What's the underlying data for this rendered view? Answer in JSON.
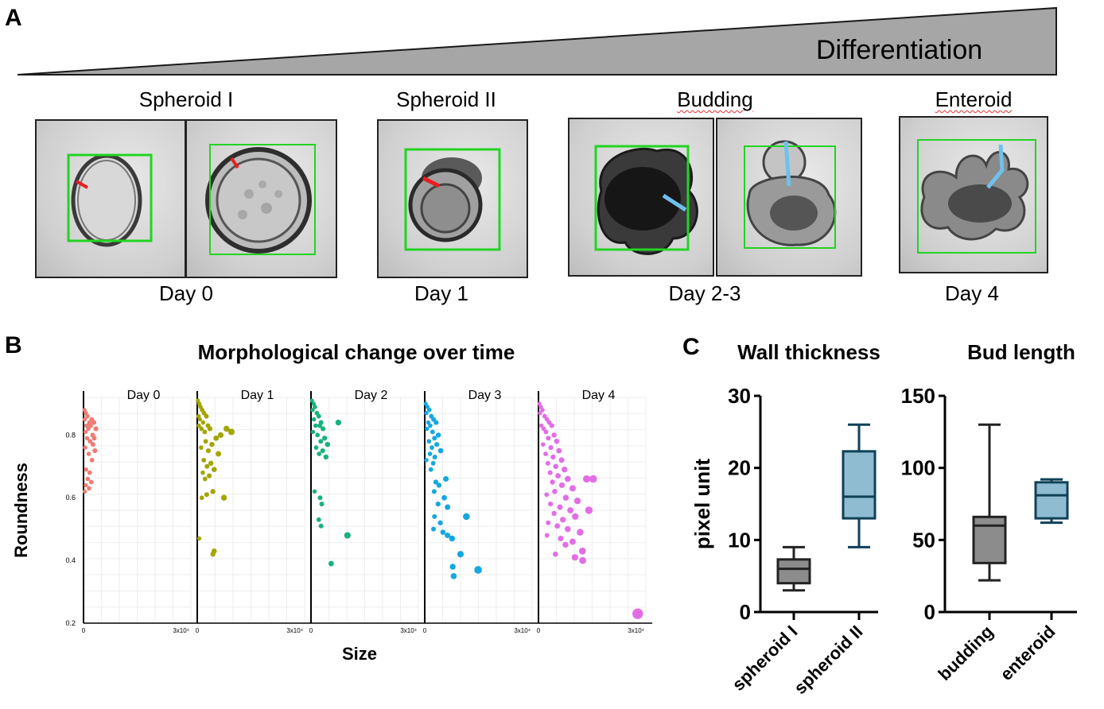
{
  "panel_a": {
    "letter": "A",
    "arrow_label": "Differentiation",
    "stages": [
      {
        "title": "Spheroid I",
        "day": "Day 0"
      },
      {
        "title": "Spheroid II",
        "day": "Day 1"
      },
      {
        "title": "Budding",
        "day": "Day 2-3"
      },
      {
        "title": "Enteroid",
        "day": "Day 4"
      }
    ],
    "colors": {
      "box": "#22d422",
      "wall_mark": "#e81e1e",
      "bud_mark": "#6ec1ea",
      "triangle": "#a6a6a6"
    }
  },
  "panel_b": {
    "letter": "B",
    "title": "Morphological change over time"
  },
  "panel_c": {
    "letter": "C"
  },
  "chart_data": [
    {
      "type": "scatter",
      "title": "Morphological change over time",
      "xlabel": "Size",
      "ylabel": "Roundness",
      "facets": [
        "Day 0",
        "Day 1",
        "Day 2",
        "Day 3",
        "Day 4"
      ],
      "xlim": [
        0,
        33000
      ],
      "x_ticks": [
        {
          "value": 0,
          "label": "0"
        },
        {
          "value": 30000,
          "label": "3x10⁴"
        }
      ],
      "ylim": [
        0.2,
        0.92
      ],
      "y_ticks": [
        0.2,
        0.4,
        0.6,
        0.8
      ],
      "colors": [
        "#f07b72",
        "#a3a500",
        "#19b27a",
        "#14a8e0",
        "#e26ee6"
      ],
      "series": [
        {
          "name": "Day 0",
          "points": [
            [
              300,
              0.88
            ],
            [
              700,
              0.87
            ],
            [
              1200,
              0.86
            ],
            [
              400,
              0.85
            ],
            [
              1800,
              0.84
            ],
            [
              2500,
              0.85
            ],
            [
              3200,
              0.84
            ],
            [
              900,
              0.83
            ],
            [
              1500,
              0.82
            ],
            [
              2200,
              0.83
            ],
            [
              3800,
              0.82
            ],
            [
              600,
              0.81
            ],
            [
              2800,
              0.8
            ],
            [
              1100,
              0.79
            ],
            [
              2000,
              0.78
            ],
            [
              3300,
              0.79
            ],
            [
              500,
              0.76
            ],
            [
              1600,
              0.74
            ],
            [
              2600,
              0.72
            ],
            [
              800,
              0.69
            ],
            [
              1900,
              0.68
            ],
            [
              1300,
              0.66
            ],
            [
              2400,
              0.65
            ],
            [
              700,
              0.64
            ],
            [
              1700,
              0.63
            ],
            [
              400,
              0.62
            ],
            [
              2900,
              0.77
            ],
            [
              3500,
              0.75
            ]
          ]
        },
        {
          "name": "Day 1",
          "points": [
            [
              200,
              0.91
            ],
            [
              600,
              0.9
            ],
            [
              1000,
              0.89
            ],
            [
              1500,
              0.88
            ],
            [
              2100,
              0.87
            ],
            [
              400,
              0.86
            ],
            [
              2800,
              0.86
            ],
            [
              800,
              0.85
            ],
            [
              1800,
              0.84
            ],
            [
              3300,
              0.83
            ],
            [
              500,
              0.83
            ],
            [
              1300,
              0.82
            ],
            [
              2300,
              0.81
            ],
            [
              3900,
              0.82
            ],
            [
              9000,
              0.82
            ],
            [
              10500,
              0.81
            ],
            [
              7200,
              0.8
            ],
            [
              5800,
              0.79
            ],
            [
              2600,
              0.78
            ],
            [
              4500,
              0.77
            ],
            [
              1200,
              0.76
            ],
            [
              3400,
              0.75
            ],
            [
              6500,
              0.74
            ],
            [
              2000,
              0.72
            ],
            [
              4200,
              0.71
            ],
            [
              3000,
              0.7
            ],
            [
              5200,
              0.69
            ],
            [
              1700,
              0.68
            ],
            [
              3700,
              0.67
            ],
            [
              2400,
              0.66
            ],
            [
              8200,
              0.6
            ],
            [
              4800,
              0.62
            ],
            [
              2900,
              0.61
            ],
            [
              1400,
              0.6
            ],
            [
              600,
              0.47
            ],
            [
              5200,
              0.43
            ],
            [
              4800,
              0.42
            ]
          ]
        },
        {
          "name": "Day 2",
          "points": [
            [
              300,
              0.91
            ],
            [
              800,
              0.9
            ],
            [
              1200,
              0.89
            ],
            [
              500,
              0.88
            ],
            [
              1800,
              0.87
            ],
            [
              2400,
              0.86
            ],
            [
              900,
              0.85
            ],
            [
              3100,
              0.84
            ],
            [
              8400,
              0.84
            ],
            [
              1400,
              0.83
            ],
            [
              2700,
              0.83
            ],
            [
              3700,
              0.82
            ],
            [
              600,
              0.81
            ],
            [
              2000,
              0.8
            ],
            [
              4200,
              0.79
            ],
            [
              3000,
              0.78
            ],
            [
              5100,
              0.77
            ],
            [
              1600,
              0.76
            ],
            [
              3600,
              0.75
            ],
            [
              2500,
              0.74
            ],
            [
              4600,
              0.73
            ],
            [
              1100,
              0.62
            ],
            [
              2800,
              0.6
            ],
            [
              3300,
              0.58
            ],
            [
              2400,
              0.53
            ],
            [
              3100,
              0.51
            ],
            [
              11200,
              0.48
            ],
            [
              6200,
              0.39
            ]
          ]
        },
        {
          "name": "Day 3",
          "points": [
            [
              300,
              0.9
            ],
            [
              800,
              0.89
            ],
            [
              1400,
              0.88
            ],
            [
              500,
              0.87
            ],
            [
              2000,
              0.86
            ],
            [
              2700,
              0.85
            ],
            [
              1100,
              0.84
            ],
            [
              3500,
              0.84
            ],
            [
              1700,
              0.83
            ],
            [
              700,
              0.82
            ],
            [
              2400,
              0.81
            ],
            [
              4200,
              0.8
            ],
            [
              3000,
              0.79
            ],
            [
              1300,
              0.78
            ],
            [
              3700,
              0.77
            ],
            [
              2200,
              0.76
            ],
            [
              4900,
              0.75
            ],
            [
              1600,
              0.74
            ],
            [
              3100,
              0.73
            ],
            [
              500,
              0.72
            ],
            [
              2600,
              0.71
            ],
            [
              1900,
              0.69
            ],
            [
              6500,
              0.66
            ],
            [
              3400,
              0.65
            ],
            [
              4400,
              0.64
            ],
            [
              2900,
              0.62
            ],
            [
              6000,
              0.6
            ],
            [
              4100,
              0.58
            ],
            [
              7000,
              0.57
            ],
            [
              12800,
              0.54
            ],
            [
              3000,
              0.54
            ],
            [
              4800,
              0.52
            ],
            [
              2700,
              0.5
            ],
            [
              5600,
              0.49
            ],
            [
              7000,
              0.48
            ],
            [
              8400,
              0.47
            ],
            [
              11000,
              0.42
            ],
            [
              8600,
              0.38
            ],
            [
              16400,
              0.37
            ],
            [
              8900,
              0.35
            ]
          ]
        },
        {
          "name": "Day 4",
          "points": [
            [
              300,
              0.9
            ],
            [
              700,
              0.89
            ],
            [
              1200,
              0.88
            ],
            [
              500,
              0.87
            ],
            [
              1900,
              0.86
            ],
            [
              2600,
              0.85
            ],
            [
              3300,
              0.84
            ],
            [
              900,
              0.83
            ],
            [
              4100,
              0.83
            ],
            [
              1600,
              0.82
            ],
            [
              2300,
              0.81
            ],
            [
              4800,
              0.8
            ],
            [
              3000,
              0.79
            ],
            [
              5600,
              0.78
            ],
            [
              1400,
              0.77
            ],
            [
              3800,
              0.76
            ],
            [
              6300,
              0.75
            ],
            [
              2200,
              0.74
            ],
            [
              4500,
              0.73
            ],
            [
              7100,
              0.72
            ],
            [
              2900,
              0.71
            ],
            [
              5300,
              0.7
            ],
            [
              8000,
              0.69
            ],
            [
              3600,
              0.68
            ],
            [
              6000,
              0.67
            ],
            [
              9000,
              0.66
            ],
            [
              4300,
              0.65
            ],
            [
              7200,
              0.64
            ],
            [
              14800,
              0.66
            ],
            [
              16800,
              0.66
            ],
            [
              10500,
              0.63
            ],
            [
              5000,
              0.62
            ],
            [
              2500,
              0.61
            ],
            [
              8400,
              0.6
            ],
            [
              12000,
              0.59
            ],
            [
              3700,
              0.58
            ],
            [
              6600,
              0.57
            ],
            [
              9800,
              0.56
            ],
            [
              15500,
              0.56
            ],
            [
              4800,
              0.55
            ],
            [
              11300,
              0.54
            ],
            [
              7500,
              0.53
            ],
            [
              3000,
              0.52
            ],
            [
              5800,
              0.51
            ],
            [
              9000,
              0.5
            ],
            [
              12800,
              0.49
            ],
            [
              2600,
              0.48
            ],
            [
              6800,
              0.47
            ],
            [
              10500,
              0.46
            ],
            [
              8300,
              0.45
            ],
            [
              13500,
              0.43
            ],
            [
              5200,
              0.42
            ],
            [
              11200,
              0.41
            ],
            [
              13600,
              0.4
            ],
            [
              30500,
              0.23
            ]
          ]
        }
      ]
    },
    {
      "type": "box",
      "title": "Wall thickness",
      "ylabel": "pixel unit",
      "ylim": [
        0,
        30
      ],
      "y_ticks": [
        0,
        10,
        20,
        30
      ],
      "categories": [
        "spheroid I",
        "spheroid II"
      ],
      "boxes": [
        {
          "min": 3,
          "q1": 4,
          "median": 6,
          "q3": 7.3,
          "max": 9,
          "fill": "#8c8c8c",
          "stroke": "#222222"
        },
        {
          "min": 9,
          "q1": 13,
          "median": 16,
          "q3": 22.3,
          "max": 26,
          "fill": "#8fbcd1",
          "stroke": "#0f4157"
        }
      ]
    },
    {
      "type": "box",
      "title": "Bud length",
      "ylabel": "",
      "ylim": [
        0,
        150
      ],
      "y_ticks": [
        0,
        50,
        100,
        150
      ],
      "categories": [
        "budding",
        "enteroid"
      ],
      "boxes": [
        {
          "min": 22,
          "q1": 34,
          "median": 60,
          "q3": 66,
          "max": 130,
          "fill": "#8c8c8c",
          "stroke": "#222222"
        },
        {
          "min": 62,
          "q1": 65,
          "median": 81,
          "q3": 90,
          "max": 92,
          "fill": "#8fbcd1",
          "stroke": "#0f4157"
        }
      ]
    }
  ]
}
